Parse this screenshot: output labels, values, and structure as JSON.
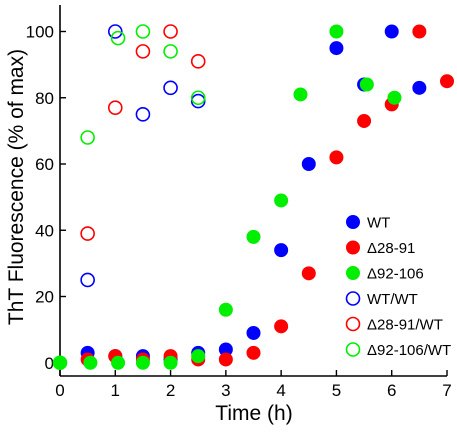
{
  "chart_data": {
    "type": "scatter",
    "title": "",
    "xlabel": "Time (h)",
    "ylabel": "ThT Fluorescence (% of max)",
    "xlim": [
      0,
      7
    ],
    "ylim": [
      -4,
      108
    ],
    "xticks": [
      0,
      1,
      2,
      3,
      4,
      5,
      6,
      7
    ],
    "yticks": [
      0,
      20,
      40,
      60,
      80,
      100
    ],
    "grid": false,
    "legend_position": "right",
    "series": [
      {
        "name": "WT",
        "color": "#0000ff",
        "marker": "filled-circle",
        "points": [
          [
            0.5,
            3
          ],
          [
            1.0,
            2
          ],
          [
            1.5,
            2
          ],
          [
            2.0,
            1
          ],
          [
            2.5,
            3
          ],
          [
            3.0,
            4
          ],
          [
            3.5,
            9
          ],
          [
            4.0,
            34
          ],
          [
            4.5,
            60
          ],
          [
            5.0,
            95
          ],
          [
            5.5,
            84
          ],
          [
            6.0,
            100
          ],
          [
            6.5,
            83
          ]
        ]
      },
      {
        "name": "Δ28-91",
        "color": "#ff0000",
        "marker": "filled-circle",
        "points": [
          [
            0.5,
            1
          ],
          [
            1.0,
            2
          ],
          [
            1.5,
            1
          ],
          [
            2.0,
            2
          ],
          [
            2.5,
            1
          ],
          [
            3.0,
            1
          ],
          [
            3.5,
            3
          ],
          [
            4.0,
            11
          ],
          [
            4.5,
            27
          ],
          [
            5.0,
            62
          ],
          [
            5.5,
            73
          ],
          [
            6.0,
            78
          ],
          [
            6.5,
            100
          ],
          [
            7.0,
            85
          ]
        ]
      },
      {
        "name": "Δ92-106",
        "color": "#00ee00",
        "marker": "filled-circle",
        "points": [
          [
            0.0,
            0
          ],
          [
            0.55,
            0
          ],
          [
            1.05,
            0
          ],
          [
            1.5,
            0
          ],
          [
            2.0,
            0
          ],
          [
            2.5,
            2
          ],
          [
            3.0,
            16
          ],
          [
            3.5,
            38
          ],
          [
            4.0,
            49
          ],
          [
            4.35,
            81
          ],
          [
            5.0,
            100
          ],
          [
            5.55,
            84
          ],
          [
            6.05,
            80
          ]
        ]
      },
      {
        "name": "WT/WT",
        "color": "#0000ff",
        "marker": "open-circle",
        "points": [
          [
            0.5,
            25
          ],
          [
            1.0,
            100
          ],
          [
            1.5,
            75
          ],
          [
            2.0,
            83
          ],
          [
            2.5,
            79
          ]
        ]
      },
      {
        "name": "Δ28-91/WT",
        "color": "#ff0000",
        "marker": "open-circle",
        "points": [
          [
            0.5,
            39
          ],
          [
            1.0,
            77
          ],
          [
            1.5,
            94
          ],
          [
            2.0,
            100
          ],
          [
            2.5,
            91
          ]
        ]
      },
      {
        "name": "Δ92-106/WT",
        "color": "#00ee00",
        "marker": "open-circle",
        "points": [
          [
            0.0,
            0
          ],
          [
            0.5,
            68
          ],
          [
            1.05,
            98
          ],
          [
            1.5,
            100
          ],
          [
            2.0,
            94
          ],
          [
            2.5,
            80
          ]
        ]
      }
    ]
  }
}
